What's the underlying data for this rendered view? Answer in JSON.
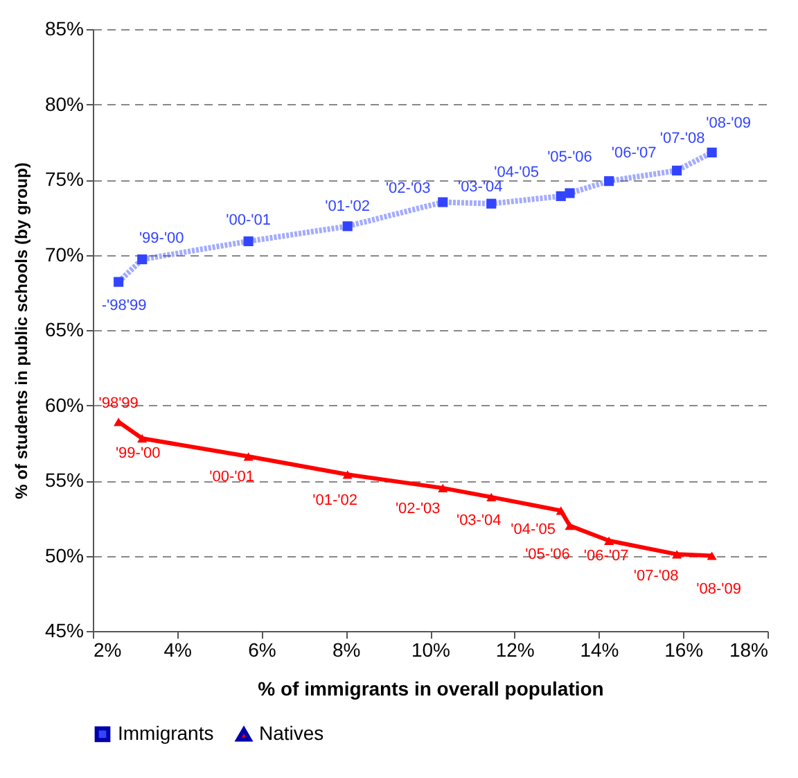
{
  "chart_data": {
    "type": "line",
    "xlabel": "% of immigrants in overall population",
    "ylabel": "% of students in public schools (by group)",
    "xlim": [
      2,
      18
    ],
    "xticks": [
      {
        "value": 2,
        "label": "2%"
      },
      {
        "value": 4,
        "label": "4%"
      },
      {
        "value": 6,
        "label": "6%"
      },
      {
        "value": 8,
        "label": "8%"
      },
      {
        "value": 10,
        "label": "10%"
      },
      {
        "value": 12,
        "label": "12%"
      },
      {
        "value": 14,
        "label": "14%"
      },
      {
        "value": 16,
        "label": "16%"
      },
      {
        "value": 18,
        "label": "18%"
      }
    ],
    "ylim": [
      45,
      85
    ],
    "yticks": [
      {
        "value": 45,
        "label": "45%"
      },
      {
        "value": 50,
        "label": "50%"
      },
      {
        "value": 55,
        "label": "55%"
      },
      {
        "value": 60,
        "label": "60%"
      },
      {
        "value": 65,
        "label": "65%"
      },
      {
        "value": 70,
        "label": "70%"
      },
      {
        "value": 75,
        "label": "75%"
      },
      {
        "value": 80,
        "label": "80%"
      },
      {
        "value": 85,
        "label": "85%"
      }
    ],
    "grid": "y",
    "legend": "bottom",
    "series": [
      {
        "name": "Immigrants",
        "color": "#3344ff",
        "marker": "square",
        "line_style": "dotted",
        "x": [
          2.61,
          3.17,
          5.69,
          8.04,
          10.3,
          11.45,
          13.1,
          13.31,
          14.24,
          15.85,
          16.68
        ],
        "values": [
          68.2,
          69.7,
          70.9,
          71.9,
          73.5,
          73.4,
          73.9,
          74.1,
          74.9,
          75.6,
          76.8
        ],
        "value_labels": [
          "-'98'99",
          "'99-'00",
          "'00-'01",
          "'01-'02",
          "'02-'03",
          "'03-'04",
          "'04-'05",
          "'05-'06",
          "'06-'07",
          "'07-'08",
          "'08-'09"
        ]
      },
      {
        "name": "Natives",
        "color": "#ff0000",
        "marker": "triangle",
        "line_style": "solid",
        "x": [
          2.61,
          3.17,
          5.69,
          8.04,
          10.3,
          11.45,
          13.1,
          13.31,
          14.24,
          15.85,
          16.68
        ],
        "values": [
          58.9,
          57.8,
          56.6,
          55.4,
          54.5,
          53.9,
          53.0,
          52.0,
          51.0,
          50.1,
          50.0
        ],
        "value_labels": [
          "'98'99",
          "'99-'00",
          "'00-'01",
          "'01-'02",
          "'02-'03",
          "'03-'04",
          "'04-'05",
          "'05-'06",
          "'06-'07",
          "'07-'08",
          "'08-'09"
        ]
      }
    ]
  }
}
